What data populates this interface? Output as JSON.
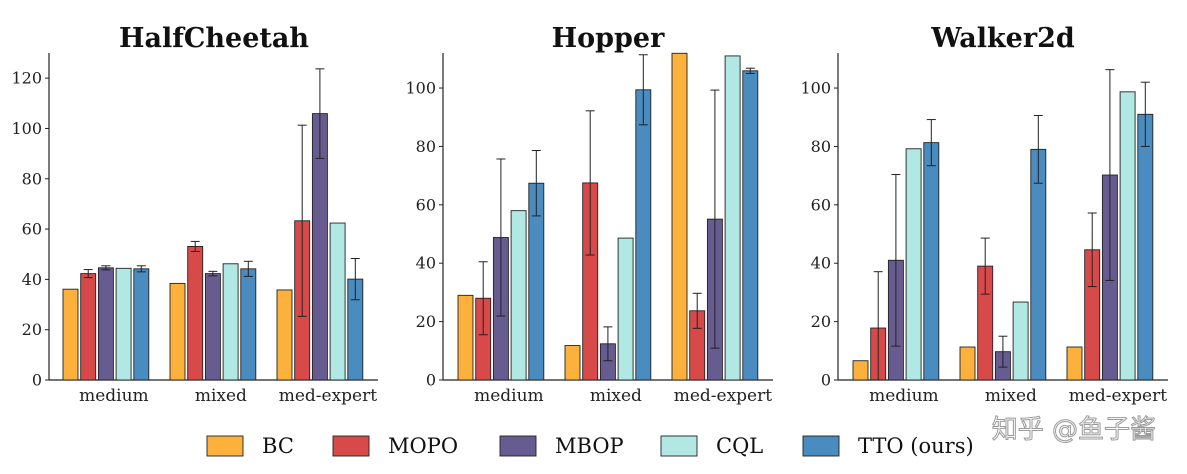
{
  "chart_data": [
    {
      "type": "bar",
      "title": "HalfCheetah",
      "categories": [
        "medium",
        "mixed",
        "med-expert"
      ],
      "ylim": [
        0,
        130
      ],
      "yticks": [
        0,
        20,
        40,
        60,
        80,
        100,
        120
      ],
      "series": [
        {
          "name": "BC",
          "values": [
            36.1,
            38.4,
            35.8
          ],
          "errors": [
            0,
            0,
            0
          ]
        },
        {
          "name": "MOPO",
          "values": [
            42.3,
            53.1,
            63.3
          ],
          "errors": [
            1.6,
            2.0,
            38.0
          ]
        },
        {
          "name": "MBOP",
          "values": [
            44.6,
            42.3,
            105.9
          ],
          "errors": [
            0.8,
            0.9,
            17.8
          ]
        },
        {
          "name": "CQL",
          "values": [
            44.4,
            46.2,
            62.4
          ],
          "errors": [
            0,
            0,
            0
          ]
        },
        {
          "name": "TTO (ours)",
          "values": [
            44.2,
            44.2,
            40.1
          ],
          "errors": [
            1.2,
            3.0,
            8.2
          ]
        }
      ]
    },
    {
      "type": "bar",
      "title": "Hopper",
      "categories": [
        "medium",
        "mixed",
        "med-expert"
      ],
      "ylim": [
        0,
        112
      ],
      "yticks": [
        0,
        20,
        40,
        60,
        80,
        100
      ],
      "series": [
        {
          "name": "BC",
          "values": [
            29.0,
            11.8,
            111.9
          ],
          "errors": [
            0,
            0,
            0
          ]
        },
        {
          "name": "MOPO",
          "values": [
            28.0,
            67.5,
            23.7
          ],
          "errors": [
            12.5,
            24.7,
            6.0
          ]
        },
        {
          "name": "MBOP",
          "values": [
            48.8,
            12.4,
            55.1
          ],
          "errors": [
            26.9,
            5.8,
            44.2
          ]
        },
        {
          "name": "CQL",
          "values": [
            58.0,
            48.6,
            111.0
          ],
          "errors": [
            0,
            0,
            0
          ]
        },
        {
          "name": "TTO (ours)",
          "values": [
            67.4,
            99.4,
            105.9
          ],
          "errors": [
            11.2,
            12.0,
            0.9
          ]
        }
      ]
    },
    {
      "type": "bar",
      "title": "Walker2d",
      "categories": [
        "medium",
        "mixed",
        "med-expert"
      ],
      "ylim": [
        0,
        112
      ],
      "yticks": [
        0,
        20,
        40,
        60,
        80,
        100
      ],
      "series": [
        {
          "name": "BC",
          "values": [
            6.6,
            11.3,
            11.3
          ],
          "errors": [
            0,
            0,
            0
          ]
        },
        {
          "name": "MOPO",
          "values": [
            17.8,
            39.0,
            44.6
          ],
          "errors": [
            19.3,
            9.6,
            12.6
          ]
        },
        {
          "name": "MBOP",
          "values": [
            41.0,
            9.7,
            70.2
          ],
          "errors": [
            29.4,
            5.3,
            36.1
          ]
        },
        {
          "name": "CQL",
          "values": [
            79.2,
            26.7,
            98.7
          ],
          "errors": [
            0,
            0,
            0
          ]
        },
        {
          "name": "TTO (ours)",
          "values": [
            81.3,
            79.0,
            91.0
          ],
          "errors": [
            7.9,
            11.6,
            11.0
          ]
        }
      ]
    }
  ],
  "legend": [
    {
      "label": "BC",
      "color": "#fbb13c"
    },
    {
      "label": "MOPO",
      "color": "#d84a4a"
    },
    {
      "label": "MBOP",
      "color": "#675c90"
    },
    {
      "label": "CQL",
      "color": "#b2e8e3"
    },
    {
      "label": "TTO (ours)",
      "color": "#4a8cc0"
    }
  ],
  "watermark": "知乎 @鱼子酱"
}
